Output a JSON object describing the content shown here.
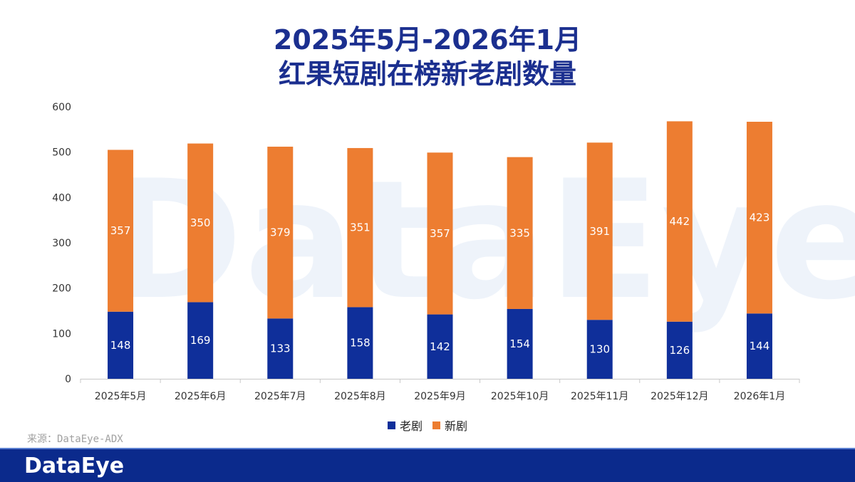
{
  "title": {
    "line1": "2025年5月-2026年1月",
    "line2": "红果短剧在榜新老剧数量"
  },
  "watermark": "DataEye",
  "source": "来源：DataEye-ADX",
  "footer": {
    "logo": "DataEye"
  },
  "colors": {
    "old": "#0f2f9a",
    "new": "#ed7d31",
    "title": "#1b2f8f",
    "footer": "#0b2a8c"
  },
  "chart_data": {
    "type": "bar",
    "stacked": true,
    "title": "2025年5月-2026年1月 红果短剧在榜新老剧数量",
    "categories": [
      "2025年5月",
      "2025年6月",
      "2025年7月",
      "2025年8月",
      "2025年9月",
      "2025年10月",
      "2025年11月",
      "2025年12月",
      "2026年1月"
    ],
    "series": [
      {
        "name": "老剧",
        "color": "#0f2f9a",
        "values": [
          148,
          169,
          133,
          158,
          142,
          154,
          130,
          126,
          144
        ]
      },
      {
        "name": "新剧",
        "color": "#ed7d31",
        "values": [
          357,
          350,
          379,
          351,
          357,
          335,
          391,
          442,
          423
        ]
      }
    ],
    "ylim": [
      0,
      600
    ],
    "yticks": [
      0,
      100,
      200,
      300,
      400,
      500,
      600
    ],
    "xlabel": "",
    "ylabel": "",
    "legend": "bottom",
    "grid": false
  }
}
